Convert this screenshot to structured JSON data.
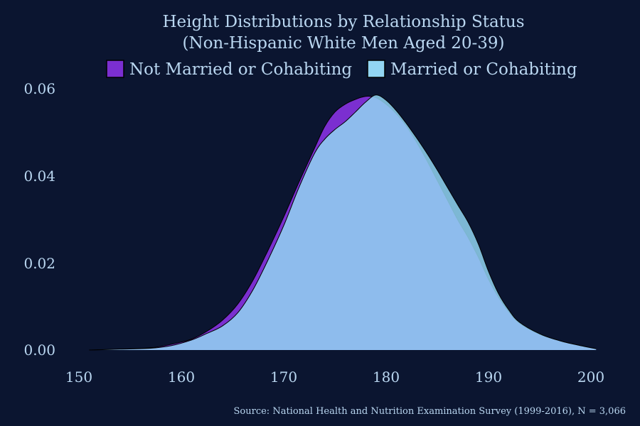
{
  "chart_data": {
    "type": "area",
    "title": "Height Distributions by Relationship Status",
    "subtitle": "(Non-Hispanic White Men Aged 20-39)",
    "xlabel": "",
    "ylabel": "",
    "xlim": [
      150,
      200.5
    ],
    "ylim": [
      0,
      0.06
    ],
    "x_ticks": [
      "150",
      "160",
      "170",
      "180",
      "190",
      "200"
    ],
    "y_ticks": [
      "0.00",
      "0.02",
      "0.04",
      "0.06"
    ],
    "legend_position": "top",
    "grid": false,
    "series": [
      {
        "name": "Not Married or Cohabiting",
        "color": "#7b2fd0",
        "points": [
          [
            151,
            0
          ],
          [
            154,
            0.0002
          ],
          [
            157,
            0.0005
          ],
          [
            159,
            0.0013
          ],
          [
            161,
            0.0025
          ],
          [
            162.5,
            0.0043
          ],
          [
            164,
            0.0068
          ],
          [
            165.5,
            0.0105
          ],
          [
            167,
            0.016
          ],
          [
            168.5,
            0.023
          ],
          [
            170,
            0.0305
          ],
          [
            171.5,
            0.0385
          ],
          [
            173,
            0.0462
          ],
          [
            174,
            0.0512
          ],
          [
            175,
            0.0545
          ],
          [
            176,
            0.0563
          ],
          [
            177,
            0.0574
          ],
          [
            178,
            0.0581
          ],
          [
            179,
            0.0578
          ],
          [
            180,
            0.0563
          ],
          [
            181,
            0.0541
          ],
          [
            182,
            0.0512
          ],
          [
            183,
            0.0475
          ],
          [
            184,
            0.0433
          ],
          [
            185,
            0.0388
          ],
          [
            186,
            0.0343
          ],
          [
            187,
            0.0298
          ],
          [
            188,
            0.0258
          ],
          [
            189,
            0.0213
          ],
          [
            190,
            0.0162
          ],
          [
            191,
            0.012
          ],
          [
            192,
            0.0087
          ],
          [
            193,
            0.0062
          ],
          [
            195,
            0.0036
          ],
          [
            197,
            0.0021
          ],
          [
            199,
            0.001
          ],
          [
            200.5,
            0.0003
          ]
        ]
      },
      {
        "name": "Married or Cohabiting",
        "color": "#92d5f2",
        "points": [
          [
            151,
            0
          ],
          [
            154,
            0.0002
          ],
          [
            157,
            0.0004
          ],
          [
            159,
            0.001
          ],
          [
            161,
            0.0023
          ],
          [
            162.5,
            0.0038
          ],
          [
            164,
            0.0055
          ],
          [
            165.5,
            0.0085
          ],
          [
            167,
            0.0138
          ],
          [
            168.5,
            0.0208
          ],
          [
            170,
            0.0285
          ],
          [
            171.5,
            0.0373
          ],
          [
            173,
            0.045
          ],
          [
            174,
            0.0483
          ],
          [
            175,
            0.0505
          ],
          [
            176,
            0.0523
          ],
          [
            177,
            0.0545
          ],
          [
            178,
            0.0568
          ],
          [
            179,
            0.0584
          ],
          [
            180,
            0.0572
          ],
          [
            181,
            0.0548
          ],
          [
            182,
            0.0518
          ],
          [
            183,
            0.0485
          ],
          [
            184,
            0.045
          ],
          [
            185,
            0.0412
          ],
          [
            186,
            0.0372
          ],
          [
            187,
            0.0332
          ],
          [
            188,
            0.0293
          ],
          [
            189,
            0.0243
          ],
          [
            190,
            0.018
          ],
          [
            191,
            0.0128
          ],
          [
            192,
            0.0091
          ],
          [
            193,
            0.0064
          ],
          [
            195,
            0.0037
          ],
          [
            197,
            0.0021
          ],
          [
            199,
            0.001
          ],
          [
            200.5,
            0.0003
          ]
        ]
      }
    ],
    "source": "Source: National Health and Nutrition Examination Survey (1999-2016), N = 3,066"
  }
}
